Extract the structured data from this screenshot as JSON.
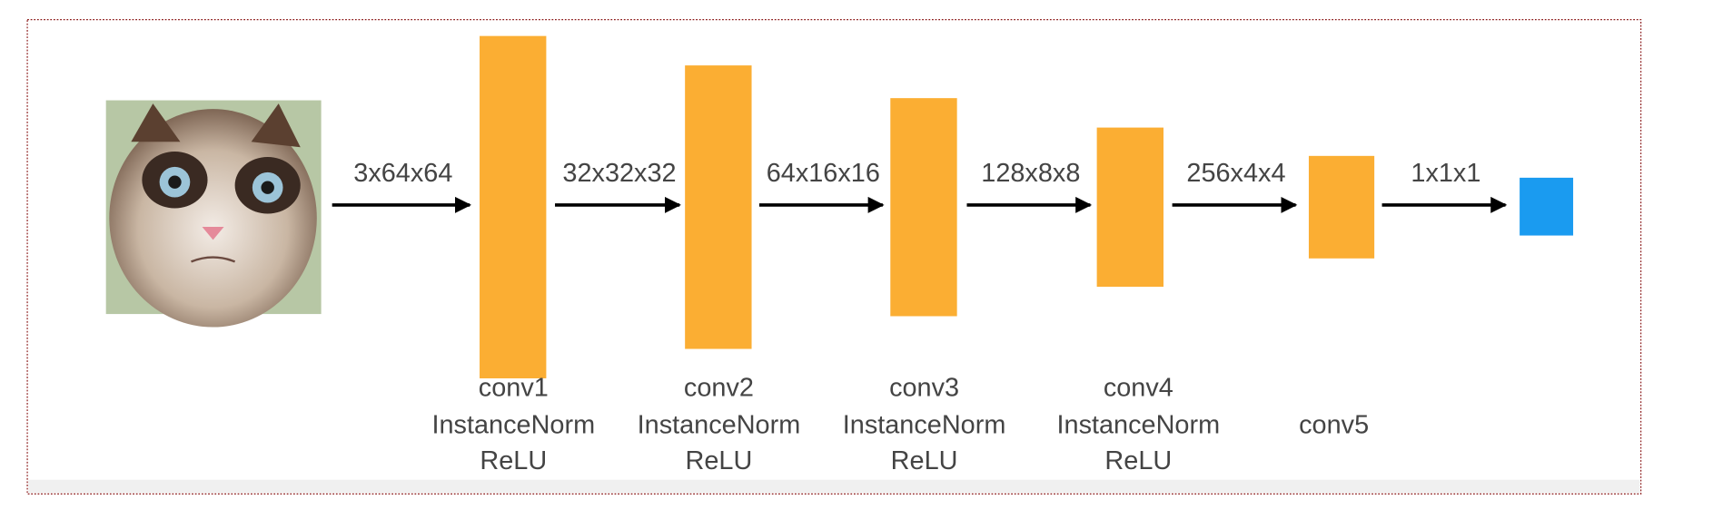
{
  "edges": [
    {
      "label": "3x64x64"
    },
    {
      "label": "32x32x32"
    },
    {
      "label": "64x16x16"
    },
    {
      "label": "128x8x8"
    },
    {
      "label": "256x4x4"
    },
    {
      "label": "1x1x1"
    }
  ],
  "layers": [
    {
      "lines": [
        "conv1",
        "InstanceNorm",
        "ReLU"
      ]
    },
    {
      "lines": [
        "conv2",
        "InstanceNorm",
        "ReLU"
      ]
    },
    {
      "lines": [
        "conv3",
        "InstanceNorm",
        "ReLU"
      ]
    },
    {
      "lines": [
        "conv4",
        "InstanceNorm",
        "ReLU"
      ]
    },
    {
      "lines": [
        "conv5"
      ]
    }
  ]
}
